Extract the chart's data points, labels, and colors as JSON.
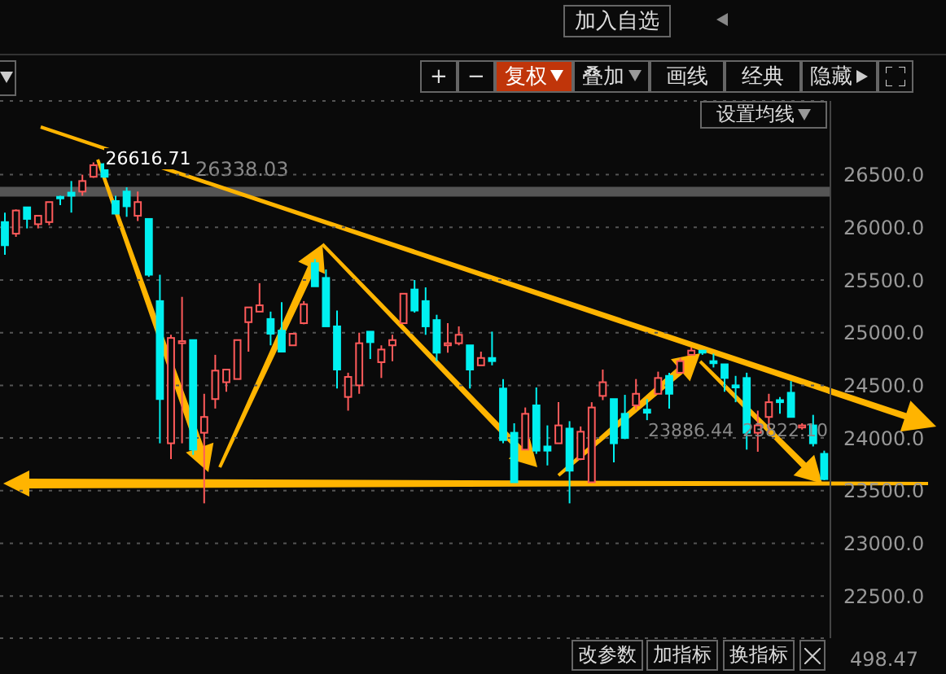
{
  "chart_data": {
    "type": "candlestick",
    "categories": [
      null,
      null,
      null,
      null,
      null,
      null,
      null,
      null,
      null,
      null,
      null,
      null,
      null,
      null,
      null,
      null,
      null,
      null,
      null,
      null,
      null,
      null,
      null,
      null,
      null,
      null,
      null,
      null,
      null,
      null,
      null,
      null,
      null,
      null,
      null,
      null,
      null,
      null,
      null,
      null,
      null,
      null,
      null,
      null,
      null,
      null,
      null,
      null,
      null,
      null,
      null,
      null,
      null,
      null,
      null,
      null,
      null,
      null,
      null,
      null,
      null,
      null,
      null,
      null,
      null,
      null,
      null,
      null,
      null,
      null,
      null,
      null,
      null,
      null,
      null
    ],
    "ohlc": [
      [
        26050,
        26140,
        25740,
        25830
      ],
      [
        25940,
        26170,
        25910,
        26160
      ],
      [
        26190,
        26190,
        25990,
        26080
      ],
      [
        26030,
        26110,
        25990,
        26110
      ],
      [
        26050,
        26240,
        26020,
        26240
      ],
      [
        26290,
        26300,
        26210,
        26280
      ],
      [
        26330,
        26440,
        26140,
        26300
      ],
      [
        26340,
        26500,
        26300,
        26440
      ],
      [
        26480,
        26616.71,
        26470,
        26590
      ],
      [
        26600,
        26610,
        26470,
        26480
      ],
      [
        26250,
        26300,
        26130,
        26130
      ],
      [
        26340,
        26380,
        26100,
        26200
      ],
      [
        26110,
        26340,
        26060,
        26240
      ],
      [
        26080,
        26080,
        25530,
        25550
      ],
      [
        25300,
        25550,
        23950,
        24370
      ],
      [
        23950,
        24980,
        23800,
        24950
      ],
      [
        24900,
        25340,
        23950,
        24920
      ],
      [
        24930,
        24930,
        23840,
        23890
      ],
      [
        24050,
        24420,
        23380,
        24200
      ],
      [
        24370,
        24790,
        24280,
        24640
      ],
      [
        24530,
        24650,
        24440,
        24650
      ],
      [
        24560,
        24930,
        24560,
        24930
      ],
      [
        25100,
        25240,
        24820,
        25240
      ],
      [
        25200,
        25470,
        25200,
        25260
      ],
      [
        25130,
        25200,
        24880,
        24990
      ],
      [
        25020,
        25290,
        24820,
        24820
      ],
      [
        24880,
        24990,
        24880,
        24990
      ],
      [
        25090,
        25300,
        25080,
        25270
      ],
      [
        25660,
        25700,
        25440,
        25440
      ],
      [
        25520,
        25600,
        25060,
        25060
      ],
      [
        25060,
        25210,
        24470,
        24650
      ],
      [
        24390,
        24620,
        24260,
        24580
      ],
      [
        24500,
        25000,
        24420,
        24900
      ],
      [
        25010,
        25010,
        24750,
        24910
      ],
      [
        24720,
        24880,
        24570,
        24840
      ],
      [
        24880,
        24980,
        24730,
        24930
      ],
      [
        25090,
        25370,
        25090,
        25370
      ],
      [
        25410,
        25500,
        25190,
        25210
      ],
      [
        25300,
        25430,
        24980,
        25060
      ],
      [
        25120,
        25170,
        24730,
        24810
      ],
      [
        24880,
        25090,
        24810,
        24900
      ],
      [
        24900,
        25060,
        24880,
        24980
      ],
      [
        24880,
        24880,
        24470,
        24650
      ],
      [
        24690,
        24820,
        24690,
        24760
      ],
      [
        24760,
        25010,
        24690,
        24730
      ],
      [
        24470,
        24560,
        23950,
        23980
      ],
      [
        24050,
        24140,
        23580,
        23580
      ],
      [
        23890,
        24290,
        23890,
        24230
      ],
      [
        24310,
        24480,
        23850,
        23880
      ],
      [
        23920,
        24120,
        23740,
        23880
      ],
      [
        23950,
        24340,
        23950,
        24120
      ],
      [
        24090,
        24160,
        23380,
        23690
      ],
      [
        23800,
        24110,
        23790,
        24060
      ],
      [
        23580,
        24340,
        23580,
        24290
      ],
      [
        24400,
        24650,
        24360,
        24530
      ],
      [
        24370,
        24370,
        23770,
        23950
      ],
      [
        24230,
        24410,
        23990,
        24000
      ],
      [
        24310,
        24560,
        24270,
        24420
      ],
      [
        24270,
        24370,
        24170,
        24240
      ],
      [
        24420,
        24630,
        24420,
        24570
      ],
      [
        24590,
        24620,
        24280,
        24420
      ],
      [
        24620,
        24760,
        24620,
        24730
      ],
      [
        24790,
        24860,
        24790,
        24830
      ],
      [
        24830,
        24830,
        24790,
        24810
      ],
      [
        24730,
        24800,
        24670,
        24710
      ],
      [
        24700,
        24700,
        24440,
        24570
      ],
      [
        24500,
        24590,
        24340,
        24480
      ],
      [
        24570,
        24620,
        23890,
        24050
      ],
      [
        24050,
        24260,
        23870,
        24120
      ],
      [
        24200,
        24420,
        24050,
        24340
      ],
      [
        24360,
        24390,
        24230,
        24340
      ],
      [
        24430,
        24540,
        24200,
        24200
      ],
      [
        24100,
        24140,
        24080,
        24120
      ],
      [
        24120,
        24220,
        23920,
        23950
      ],
      [
        23850,
        23880,
        23600,
        23610
      ]
    ],
    "ylim": [
      22100,
      27200
    ],
    "yticks": [
      {
        "value": 22500,
        "label": "22500.0"
      },
      {
        "value": 23000,
        "label": "23000.0"
      },
      {
        "value": 23500,
        "label": "23500.0"
      },
      {
        "value": 24000,
        "label": "24000.0"
      },
      {
        "value": 24500,
        "label": "24500.0"
      },
      {
        "value": 25000,
        "label": "25000.0"
      },
      {
        "value": 25500,
        "label": "25500.0"
      },
      {
        "value": 26000,
        "label": "26000.0"
      },
      {
        "value": 26500,
        "label": "26500.0"
      }
    ],
    "grid": "y",
    "tick_labels": "y",
    "ref_lines": [
      {
        "axis": "y",
        "value": 26338.03,
        "label": "26338.03",
        "color": "#555555"
      }
    ],
    "annotations": [
      "加入自选",
      "+",
      "−",
      "复权",
      "叠加",
      "画线",
      "经典",
      "隐藏",
      "设置均线",
      "改参数",
      "加指标",
      "换指标",
      "498.47",
      "23886.44",
      "23822.10",
      "26616.71"
    ]
  }
}
